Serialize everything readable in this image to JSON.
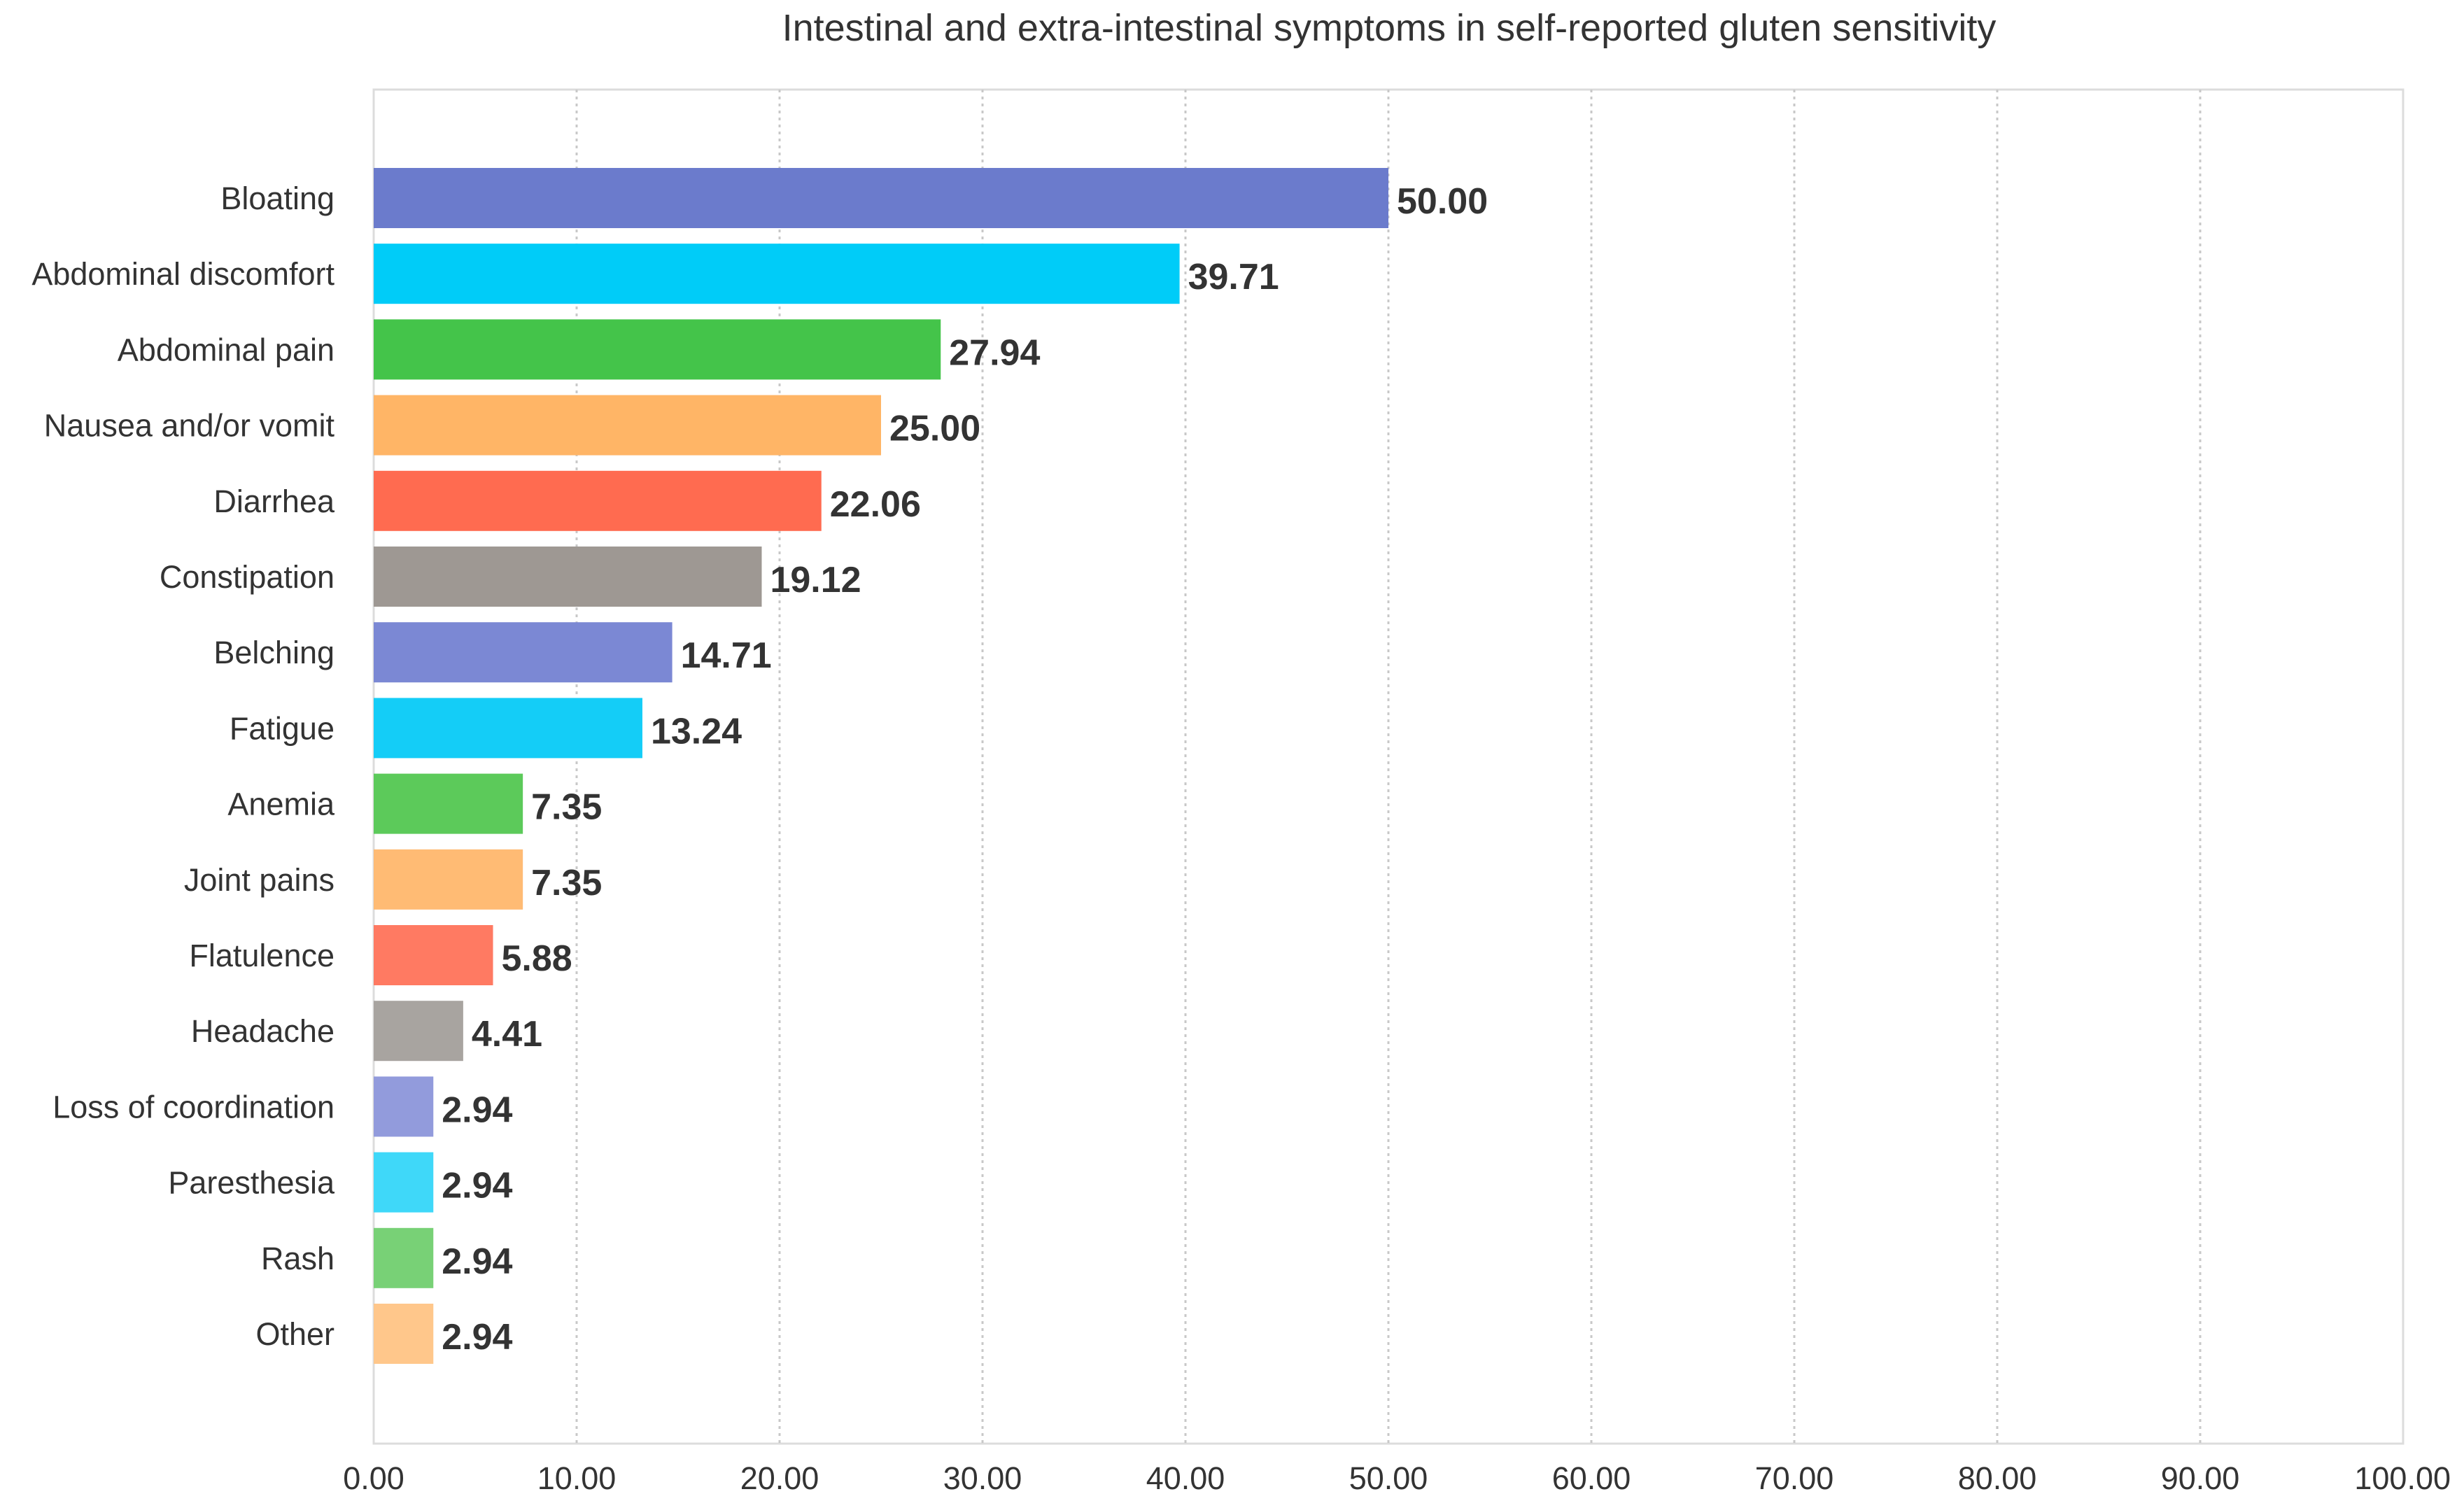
{
  "chart_data": {
    "type": "bar",
    "orientation": "horizontal",
    "title": "Intestinal and extra-intestinal symptoms in self-reported gluten sensitivity",
    "xlabel": "",
    "ylabel": "",
    "xlim": [
      0,
      100
    ],
    "x_ticks": [
      "0.00",
      "10.00",
      "20.00",
      "30.00",
      "40.00",
      "50.00",
      "60.00",
      "70.00",
      "80.00",
      "90.00",
      "100.00"
    ],
    "grid": "vertical dotted",
    "legend": "none",
    "categories": [
      "Bloating",
      "Abdominal discomfort",
      "Abdominal pain",
      "Nausea and/or vomit",
      "Diarrhea",
      "Constipation",
      "Belching",
      "Fatigue",
      "Anemia",
      "Joint pains",
      "Flatulence",
      "Headache",
      "Loss of coordination",
      "Paresthesia",
      "Rash",
      "Other"
    ],
    "values": [
      50.0,
      39.71,
      27.94,
      25.0,
      22.06,
      19.12,
      14.71,
      13.24,
      7.35,
      7.35,
      5.88,
      4.41,
      2.94,
      2.94,
      2.94,
      2.94
    ],
    "value_labels": [
      "50.00",
      "39.71",
      "27.94",
      "25.00",
      "22.06",
      "19.12",
      "14.71",
      "13.24",
      "7.35",
      "7.35",
      "5.88",
      "4.41",
      "2.94",
      "2.94",
      "2.94",
      "2.94"
    ],
    "colors": [
      "#6b7bcc",
      "#00ccf8",
      "#44c44a",
      "#ffb566",
      "#ff6b50",
      "#9e9893",
      "#7b88d4",
      "#14cdf7",
      "#5cca5a",
      "#ffbb74",
      "#ff7a62",
      "#a8a4a0",
      "#929bdc",
      "#3fd8f9",
      "#78d176",
      "#ffc78b"
    ]
  }
}
